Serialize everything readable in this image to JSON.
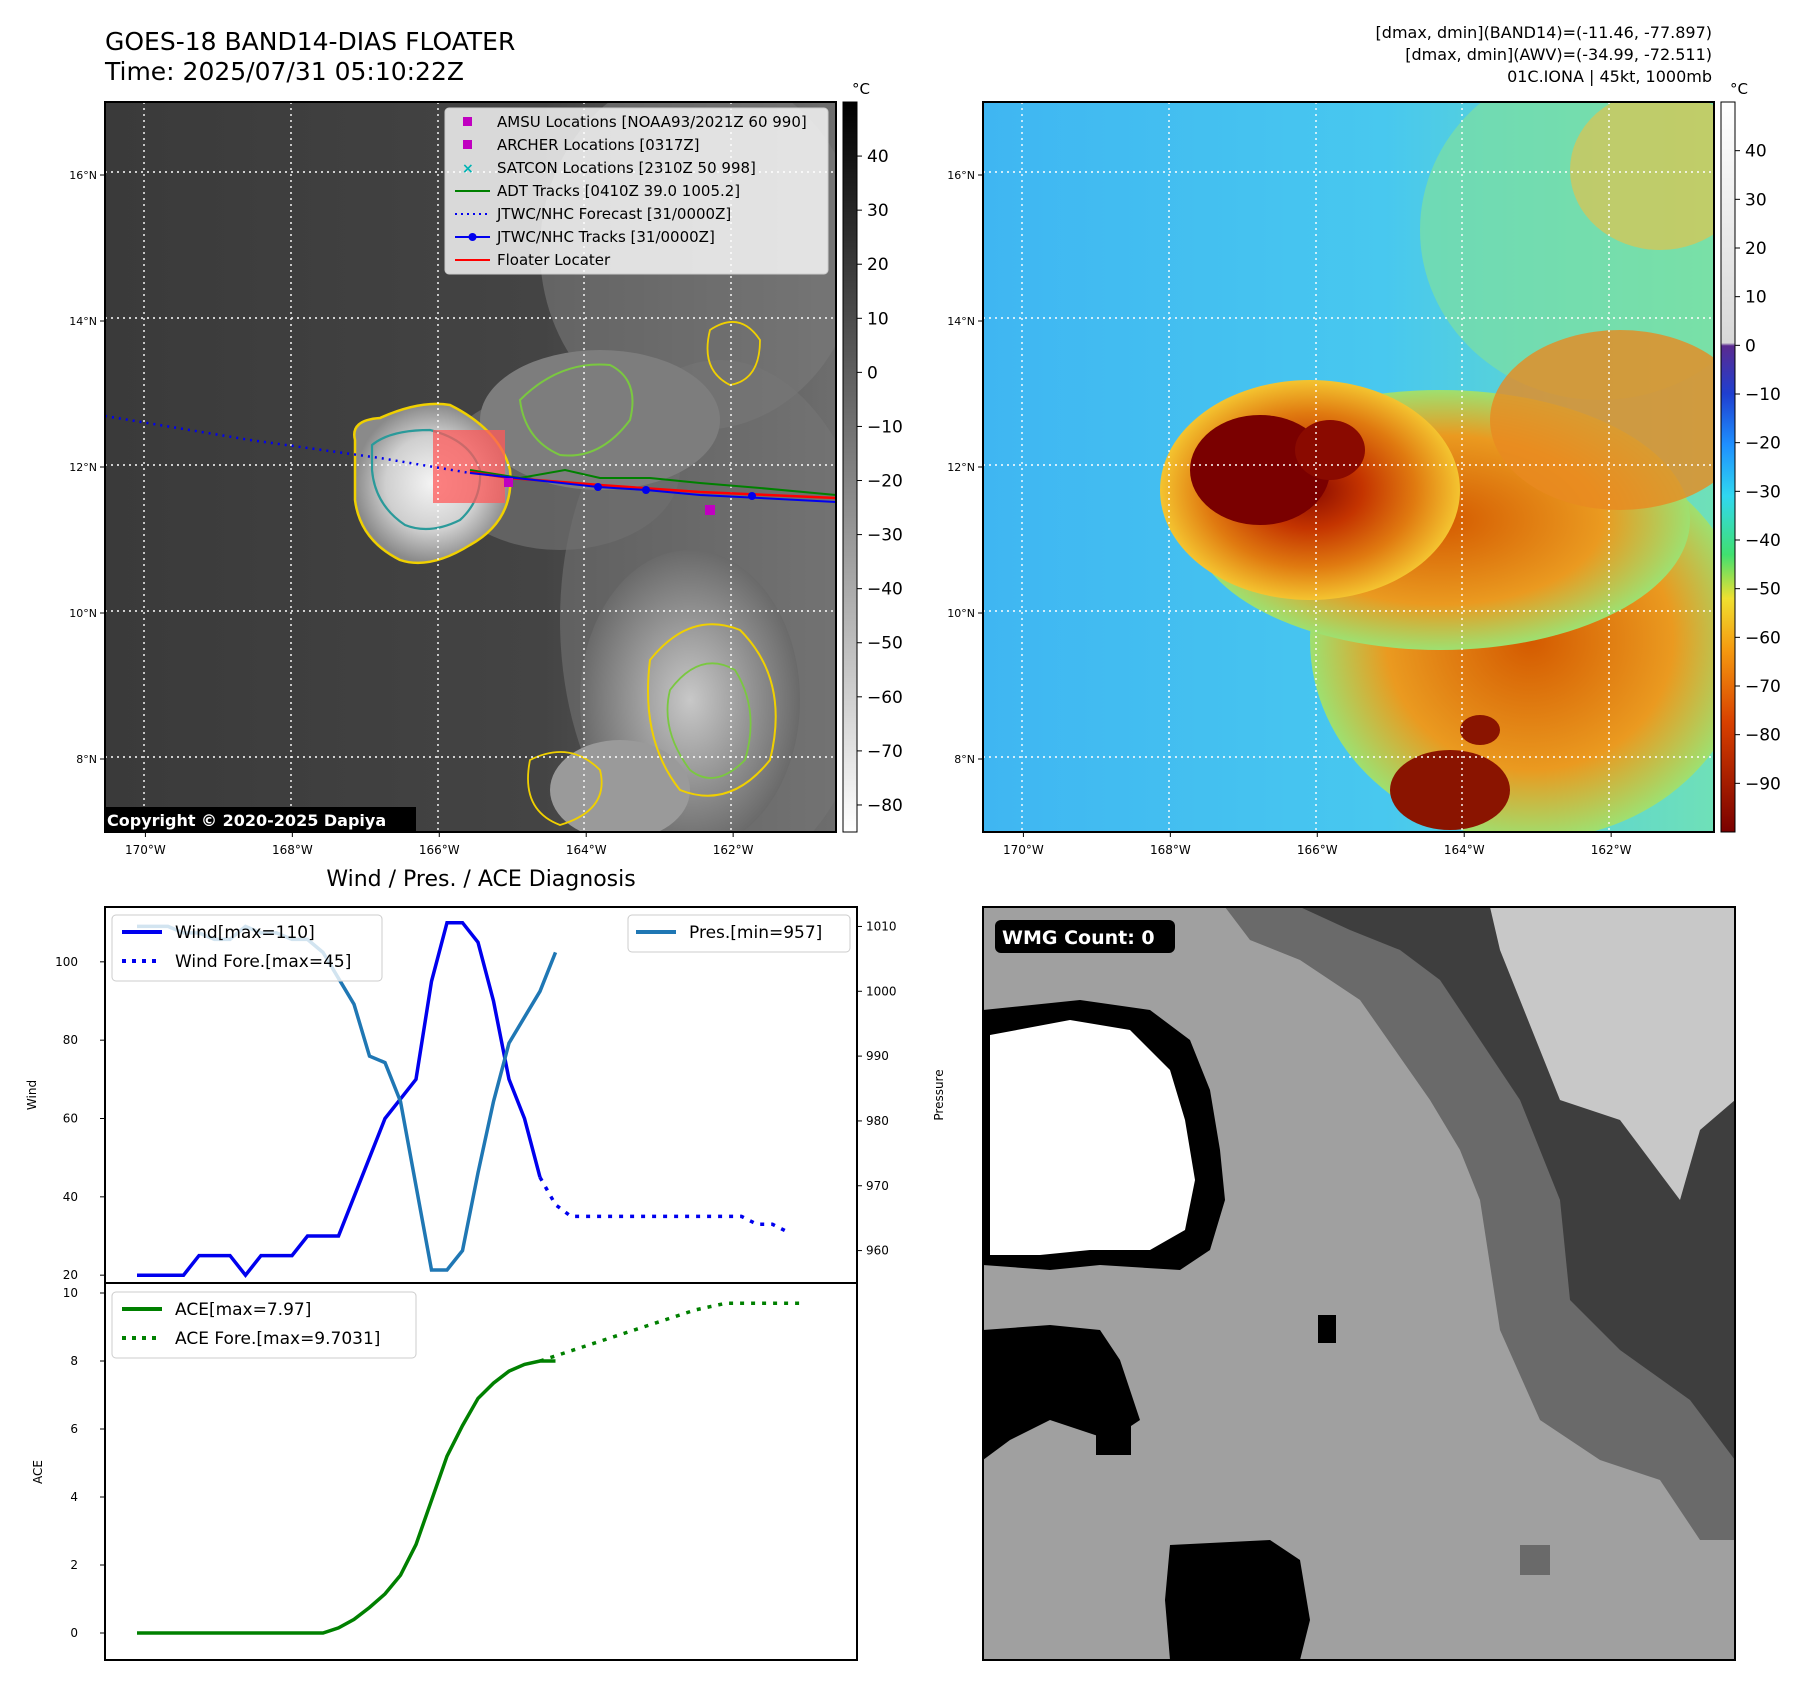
{
  "header": {
    "title_line1": "GOES-18 BAND14-DIAS FLOATER",
    "title_line2": "Time: 2025/07/31 05:10:22Z",
    "stats_line1": "[dmax, dmin](BAND14)=(-11.46, -77.897)",
    "stats_line2": "[dmax, dmin](AWV)=(-34.99, -72.511)",
    "stats_line3": "01C.IONA | 45kt, 1000mb"
  },
  "map_axes": {
    "lon_ticks": [
      "170°W",
      "168°W",
      "166°W",
      "164°W",
      "162°W"
    ],
    "lat_ticks": [
      "16°N",
      "14°N",
      "12°N",
      "10°N",
      "8°N"
    ],
    "lon_range": [
      -170.55,
      -160.6
    ],
    "lat_range": [
      7.0,
      17.0
    ],
    "grid": true
  },
  "ir_panel": {
    "copyright": "Copyright © 2020-2025 Dapiya",
    "colorbar_unit": "°C",
    "colorbar_ticks": [
      "40",
      "30",
      "20",
      "10",
      "0",
      "−10",
      "−20",
      "−30",
      "−40",
      "−50",
      "−60",
      "−70",
      "−80"
    ],
    "colorbar_range": [
      -85,
      50
    ],
    "legend": [
      {
        "label": "AMSU Locations [NOAA93/2021Z 60 990]",
        "color": "#c000c0",
        "marker": "square"
      },
      {
        "label": "ARCHER Locations [0317Z]",
        "color": "#c000c0",
        "marker": "square"
      },
      {
        "label": "SATCON Locations [2310Z 50 998]",
        "color": "#00b4b4",
        "marker": "x"
      },
      {
        "label": "ADT Tracks [0410Z 39.0 1005.2]",
        "color": "#008000",
        "marker": "line"
      },
      {
        "label": "JTWC/NHC Forecast [31/0000Z]",
        "color": "#0000ee",
        "marker": "dotted"
      },
      {
        "label": "JTWC/NHC Tracks [31/0000Z]",
        "color": "#0000ee",
        "marker": "line-dot"
      },
      {
        "label": "Floater Locater",
        "color": "#ff0000",
        "marker": "line"
      }
    ]
  },
  "wv_panel": {
    "colorbar_unit": "°C",
    "colorbar_ticks": [
      "40",
      "30",
      "20",
      "10",
      "0",
      "−10",
      "−20",
      "−30",
      "−40",
      "−50",
      "−60",
      "−70",
      "−80",
      "−90"
    ],
    "colorbar_range": [
      -100,
      50
    ]
  },
  "wmg_panel": {
    "badge": "WMG Count: 0"
  },
  "chart_data": [
    {
      "type": "line",
      "title": "Wind / Pres. / ACE Diagnosis",
      "xlabel": "",
      "ylabel": "Wind",
      "ylim": [
        18,
        114
      ],
      "yticks": [
        20,
        40,
        60,
        80,
        100
      ],
      "y2label": "Pressure",
      "y2lim": [
        955,
        1013
      ],
      "y2ticks": [
        960,
        970,
        980,
        990,
        1000,
        1010
      ],
      "legend_left": [
        "Wind[max=110]",
        "Wind Fore.[max=45]"
      ],
      "legend_right": [
        "Pres.[min=957]"
      ],
      "x": [
        0,
        1,
        2,
        3,
        4,
        5,
        6,
        7,
        8,
        9,
        10,
        11,
        12,
        13,
        14,
        15,
        16,
        17,
        18,
        19,
        20,
        21,
        22,
        23,
        24,
        25,
        26,
        27,
        28,
        29
      ],
      "series": [
        {
          "name": "Wind[max=110]",
          "axis": "left",
          "color": "#0000ee",
          "style": "solid",
          "x": [
            0,
            1,
            2,
            3,
            4,
            5,
            6,
            7,
            8,
            9,
            10,
            11,
            12,
            13,
            14,
            15,
            16,
            17,
            18,
            19,
            20,
            21,
            22,
            23,
            24,
            25,
            26
          ],
          "values": [
            20,
            20,
            20,
            20,
            25,
            25,
            25,
            20,
            25,
            25,
            25,
            30,
            30,
            30,
            40,
            50,
            60,
            65,
            70,
            95,
            110,
            110,
            105,
            90,
            70,
            60,
            45
          ]
        },
        {
          "name": "Wind Fore.[max=45]",
          "axis": "left",
          "color": "#0000ee",
          "style": "dotted",
          "x": [
            26,
            27,
            28,
            29,
            30,
            31,
            32,
            33,
            34,
            35,
            36,
            37,
            38,
            39,
            40,
            41,
            42
          ],
          "values": [
            45,
            38,
            35,
            35,
            35,
            35,
            35,
            35,
            35,
            35,
            35,
            35,
            35,
            35,
            33,
            33,
            31
          ]
        },
        {
          "name": "Pres.[min=957]",
          "axis": "right",
          "color": "#1f77b4",
          "style": "solid",
          "x": [
            0,
            1,
            2,
            3,
            4,
            5,
            6,
            7,
            8,
            9,
            10,
            11,
            12,
            13,
            14,
            15,
            16,
            17,
            18,
            19,
            20,
            21,
            22,
            23,
            24,
            25,
            26,
            27
          ],
          "values": [
            1010,
            1010,
            1010,
            1009,
            1009,
            1008,
            1008,
            1010,
            1009,
            1009,
            1008,
            1008,
            1006,
            1002,
            998,
            990,
            989,
            983,
            970,
            957,
            957,
            960,
            972,
            983,
            992,
            996,
            1000,
            1006
          ]
        }
      ]
    },
    {
      "type": "line",
      "xlabel": "",
      "ylabel": "ACE",
      "ylim": [
        -0.5,
        10
      ],
      "yticks": [
        0,
        2,
        4,
        6,
        8,
        10
      ],
      "legend": [
        "ACE[max=7.97]",
        "ACE Fore.[max=9.7031]"
      ],
      "series": [
        {
          "name": "ACE[max=7.97]",
          "color": "#008000",
          "style": "solid",
          "x": [
            0,
            1,
            2,
            3,
            4,
            5,
            6,
            7,
            8,
            9,
            10,
            11,
            12,
            13,
            14,
            15,
            16,
            17,
            18,
            19,
            20,
            21,
            22,
            23,
            24,
            25,
            26,
            27
          ],
          "values": [
            0,
            0,
            0,
            0,
            0,
            0,
            0,
            0,
            0,
            0,
            0,
            0,
            0,
            0.15,
            0.4,
            0.75,
            1.15,
            1.7,
            2.6,
            3.9,
            5.2,
            6.1,
            6.9,
            7.35,
            7.7,
            7.9,
            8.0,
            8.0
          ]
        },
        {
          "name": "ACE Fore.[max=9.7031]",
          "color": "#008000",
          "style": "dotted",
          "x": [
            26,
            27,
            28,
            29,
            30,
            31,
            32,
            33,
            34,
            35,
            36,
            37,
            38,
            39,
            40,
            41,
            42,
            43
          ],
          "values": [
            8.0,
            8.15,
            8.3,
            8.45,
            8.6,
            8.75,
            8.9,
            9.05,
            9.2,
            9.35,
            9.5,
            9.6,
            9.7,
            9.7,
            9.7,
            9.7,
            9.7,
            9.7
          ]
        }
      ]
    }
  ]
}
